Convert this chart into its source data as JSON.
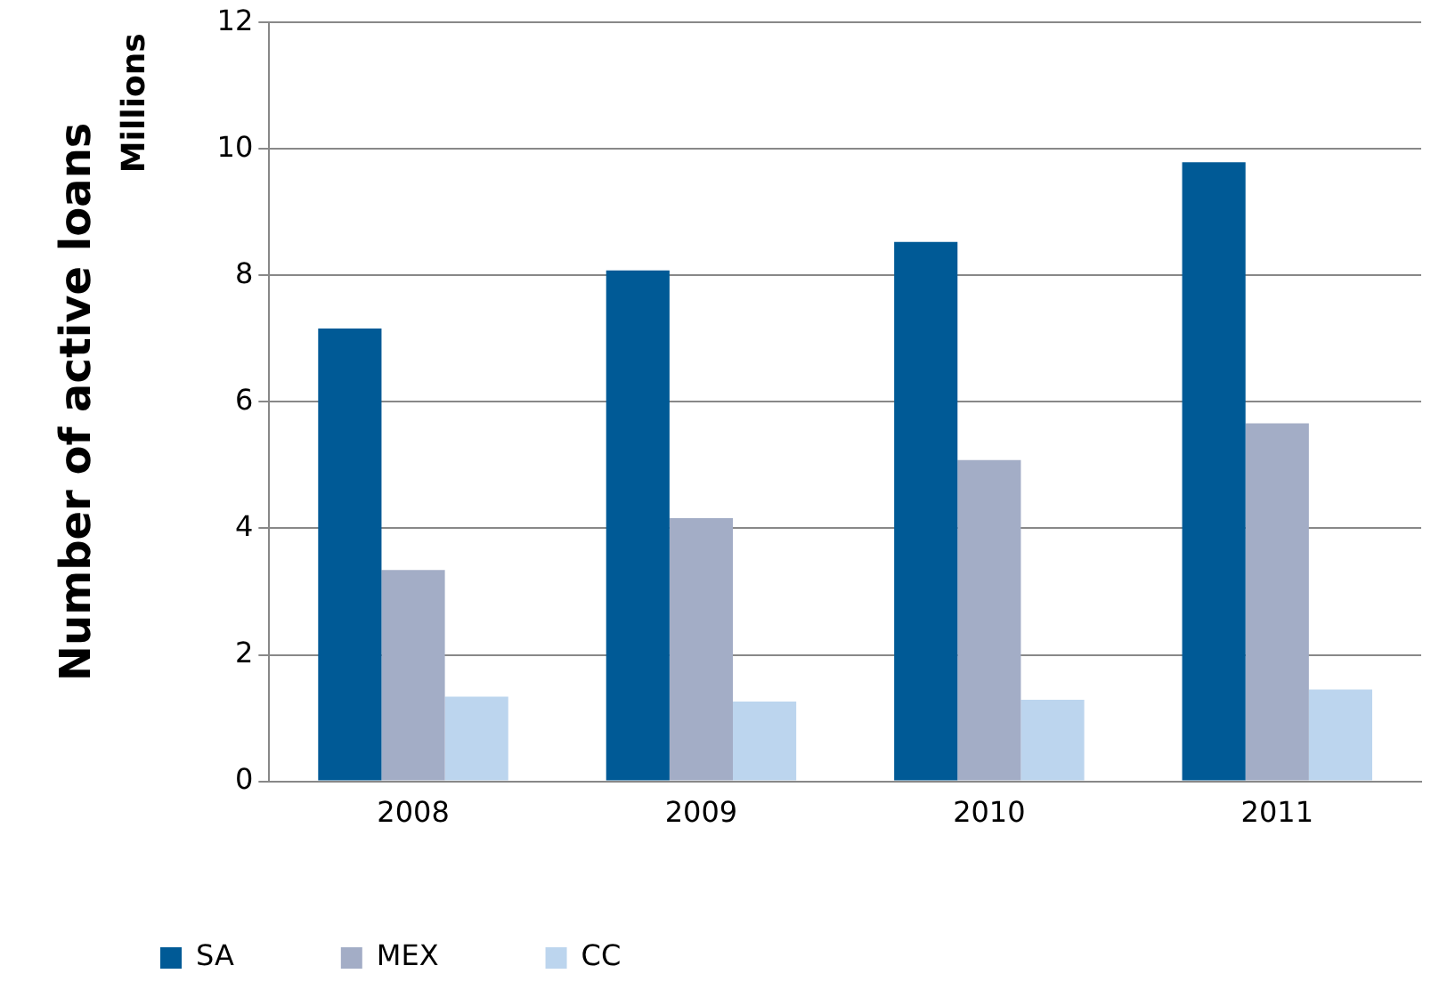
{
  "chart_data": {
    "type": "bar",
    "ylabel": "Number of active loans",
    "annotations": [
      "Millions"
    ],
    "categories": [
      "2008",
      "2009",
      "2010",
      "2011"
    ],
    "series": [
      {
        "name": "SA",
        "color": "#005a96",
        "values": [
          7.16,
          8.08,
          8.53,
          9.79
        ]
      },
      {
        "name": "MEX",
        "color": "#a3adc6",
        "values": [
          3.34,
          4.16,
          5.08,
          5.66
        ]
      },
      {
        "name": "CC",
        "color": "#bcd5ee",
        "values": [
          1.34,
          1.26,
          1.29,
          1.45
        ]
      }
    ],
    "ylim": [
      0,
      12
    ],
    "yticks": [
      0,
      2,
      4,
      6,
      8,
      10,
      12
    ],
    "grid": "y",
    "legend": "bottom"
  }
}
